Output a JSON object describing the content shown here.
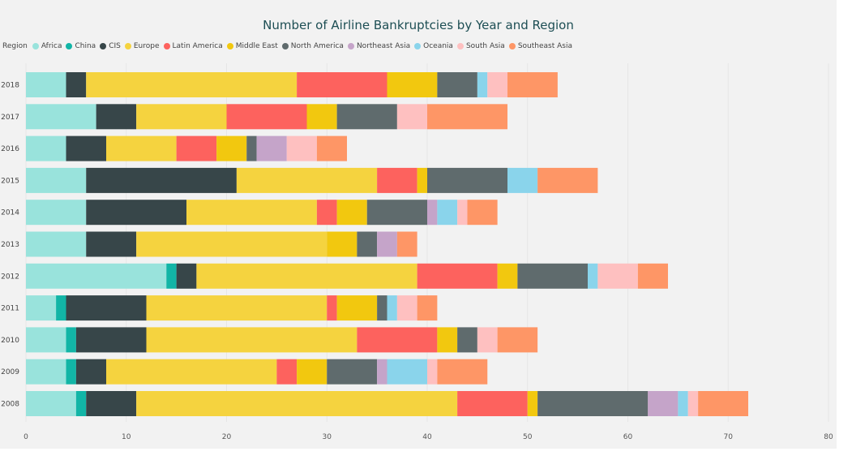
{
  "chart_data": {
    "type": "bar",
    "orientation": "horizontal",
    "stacked": true,
    "title": "Number of Airline Bankruptcies by Year and Region",
    "legend_title": "Region",
    "legend_position": "top-left",
    "xlim": [
      0,
      80
    ],
    "x_ticks": [
      "0",
      "10",
      "20",
      "30",
      "40",
      "50",
      "60",
      "70",
      "80"
    ],
    "grid": true,
    "categories": [
      "2018",
      "2017",
      "2016",
      "2015",
      "2014",
      "2013",
      "2012",
      "2011",
      "2010",
      "2009",
      "2008"
    ],
    "series": [
      {
        "name": "Africa",
        "color": "#99e3dc",
        "values": [
          4,
          7,
          4,
          6,
          6,
          6,
          14,
          3,
          4,
          4,
          5
        ]
      },
      {
        "name": "China",
        "color": "#12b5a6",
        "values": [
          0,
          0,
          0,
          0,
          0,
          0,
          1,
          1,
          1,
          1,
          1
        ]
      },
      {
        "name": "CIS",
        "color": "#374649",
        "values": [
          2,
          4,
          4,
          15,
          10,
          5,
          2,
          8,
          7,
          3,
          5
        ]
      },
      {
        "name": "Europe",
        "color": "#f5d33f",
        "values": [
          21,
          9,
          7,
          14,
          13,
          19,
          22,
          18,
          21,
          17,
          32
        ]
      },
      {
        "name": "Latin America",
        "color": "#fd625e",
        "values": [
          9,
          8,
          4,
          4,
          2,
          0,
          8,
          1,
          8,
          2,
          7
        ]
      },
      {
        "name": "Middle East",
        "color": "#f2c80f",
        "values": [
          5,
          3,
          3,
          1,
          3,
          3,
          2,
          4,
          2,
          3,
          1
        ]
      },
      {
        "name": "North America",
        "color": "#5f6b6d",
        "values": [
          4,
          6,
          1,
          8,
          6,
          2,
          7,
          1,
          2,
          5,
          11
        ]
      },
      {
        "name": "Northeast Asia",
        "color": "#c5a4c9",
        "values": [
          0,
          0,
          3,
          0,
          1,
          2,
          0,
          0,
          0,
          1,
          3
        ]
      },
      {
        "name": "Oceania",
        "color": "#8ad4eb",
        "values": [
          1,
          0,
          0,
          3,
          2,
          0,
          1,
          1,
          0,
          4,
          1
        ]
      },
      {
        "name": "South Asia",
        "color": "#fec0c0",
        "values": [
          2,
          3,
          3,
          0,
          1,
          0,
          4,
          2,
          2,
          1,
          1
        ]
      },
      {
        "name": "Southeast Asia",
        "color": "#fe9666",
        "values": [
          5,
          8,
          3,
          6,
          3,
          2,
          3,
          2,
          4,
          5,
          5
        ]
      }
    ]
  }
}
